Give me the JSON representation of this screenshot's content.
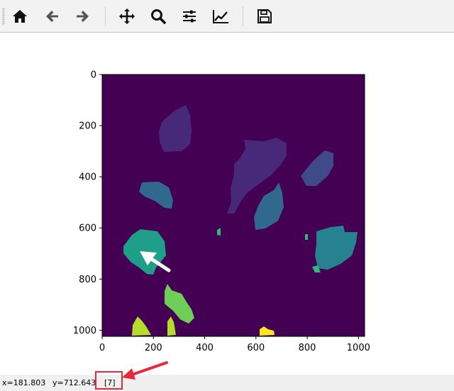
{
  "toolbar": {
    "buttons": [
      {
        "name": "home-button",
        "icon": "home-icon"
      },
      {
        "name": "back-button",
        "icon": "arrow-left-icon"
      },
      {
        "name": "forward-button",
        "icon": "arrow-right-icon"
      },
      {
        "name": "pan-button",
        "icon": "move-icon"
      },
      {
        "name": "zoom-button",
        "icon": "magnifier-icon"
      },
      {
        "name": "configure-subplots-button",
        "icon": "sliders-icon"
      },
      {
        "name": "edit-axis-button",
        "icon": "line-chart-icon"
      },
      {
        "name": "save-button",
        "icon": "floppy-disk-icon"
      }
    ]
  },
  "plot": {
    "type": "image",
    "colormap": "viridis",
    "x_range": [
      0,
      1024
    ],
    "y_range": [
      1024,
      0
    ],
    "x_ticks": [
      "0",
      "200",
      "400",
      "600",
      "800",
      "1000"
    ],
    "y_ticks": [
      "0",
      "200",
      "400",
      "600",
      "800",
      "1000"
    ],
    "colors": {
      "background": "#440154",
      "region_1": "#482878",
      "region_2": "#3e4a89",
      "region_3": "#31688e",
      "region_4": "#26828e",
      "region_5": "#1f9e89",
      "region_6": "#35b779",
      "region_7": "#6ece58",
      "region_8": "#b5de2b",
      "region_9": "#fde725"
    }
  },
  "annotations": {
    "arrow_color": "#ffffff",
    "highlight_color": "#e8283c"
  },
  "status": {
    "x_readout": "x=181.803",
    "y_readout": "y=712.643",
    "value_readout": "[7]"
  }
}
